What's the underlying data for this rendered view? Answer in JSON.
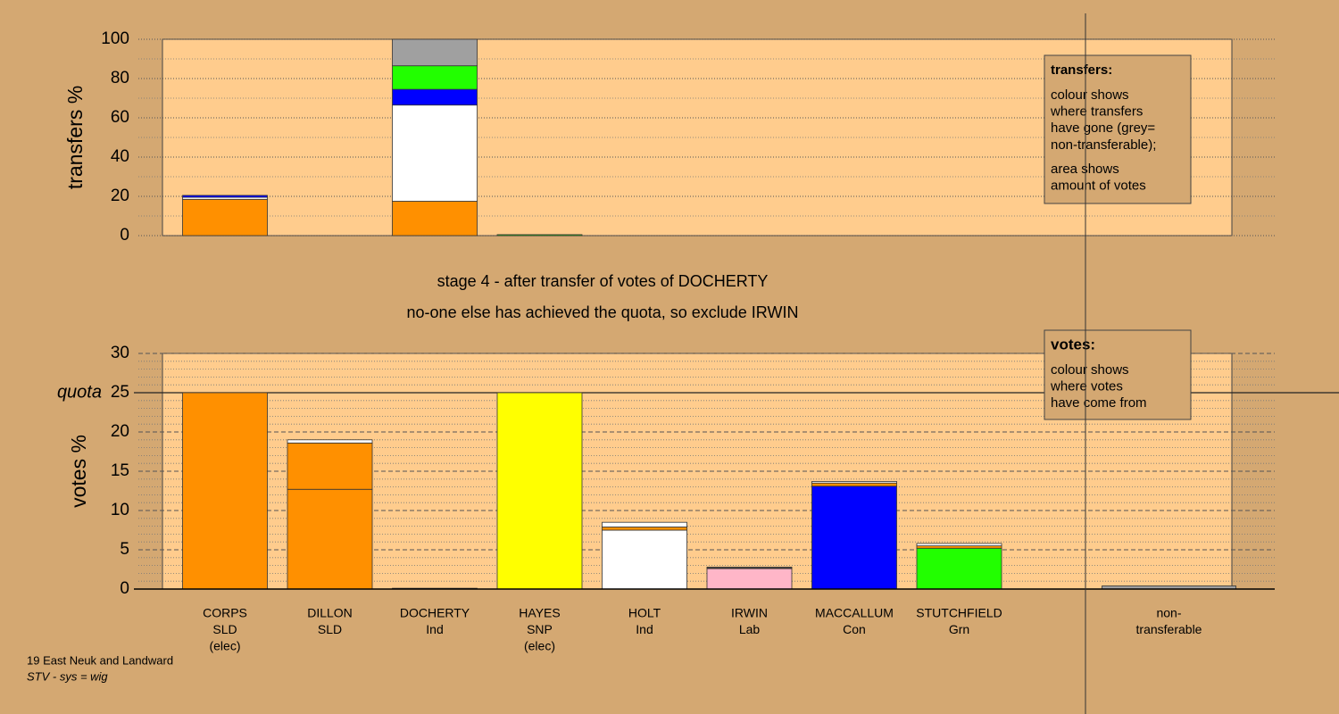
{
  "chart_data": [
    {
      "type": "bar",
      "stacked": true,
      "ylabel": "transfers %",
      "ylim": [
        0,
        100
      ],
      "yticks": [
        0,
        20,
        40,
        60,
        80,
        100
      ],
      "series": [
        {
          "color": "#ff9000",
          "values": [
            18.5,
            0,
            17.5,
            0,
            0,
            0,
            0,
            0,
            0,
            0
          ]
        },
        {
          "color": "#ffffff",
          "values": [
            1,
            0,
            49,
            0,
            0,
            0,
            0,
            0,
            0,
            0
          ]
        },
        {
          "color": "#0000ff",
          "values": [
            1,
            0,
            8,
            0,
            0,
            0,
            0,
            0,
            0,
            0
          ]
        },
        {
          "color": "#22ff00",
          "values": [
            0,
            0,
            12,
            0.5,
            0,
            0,
            0,
            0,
            0,
            0
          ]
        },
        {
          "color": "#a0a0a0",
          "values": [
            0,
            0,
            13.5,
            0,
            0,
            0,
            0,
            0,
            0,
            0
          ]
        }
      ],
      "note": {
        "title": "transfers:",
        "paragraphs": [
          [
            "colour shows",
            "where transfers",
            "have gone (grey=",
            "non-transferable);"
          ],
          [
            "area shows",
            "amount of votes"
          ]
        ]
      }
    },
    {
      "type": "bar",
      "stacked": true,
      "ylabel": "votes %",
      "ylim": [
        0,
        30
      ],
      "yticks": [
        0,
        5,
        10,
        15,
        20,
        25,
        30
      ],
      "quota": {
        "label": "quota",
        "value": 25
      },
      "categories": [
        [
          "CORPS",
          "SLD",
          "(elec)"
        ],
        [
          "DILLON",
          "SLD"
        ],
        [
          "DOCHERTY",
          "Ind"
        ],
        [
          "HAYES",
          "SNP",
          "(elec)"
        ],
        [
          "HOLT",
          "Ind"
        ],
        [
          "IRWIN",
          "Lab"
        ],
        [
          "MACCALLUM",
          "Con"
        ],
        [
          "STUTCHFIELD",
          "Grn"
        ],
        null,
        [
          "non-",
          "transferable"
        ]
      ],
      "series": [
        {
          "colors": [
            "#ff9000",
            "#ff9000",
            "#ffffff",
            "#ffff00",
            "#ffffff",
            "#ffb6c8",
            "#0000ff",
            "#22ff00",
            null,
            "#a0a0a0"
          ],
          "values": [
            25,
            12.7,
            0,
            25,
            7.5,
            2.6,
            13.1,
            5.2,
            0,
            0
          ]
        },
        {
          "color": "#ff9000",
          "values": [
            0,
            5.9,
            0,
            0,
            0.4,
            0.1,
            0.4,
            0.3,
            0,
            0
          ]
        },
        {
          "color": "#ffffff",
          "values": [
            0,
            0.4,
            0.1,
            0,
            0.6,
            0.1,
            0.2,
            0.3,
            0,
            0
          ]
        },
        {
          "color": "#a0a0a0",
          "values": [
            0,
            0,
            0,
            0,
            0,
            0,
            0,
            0,
            0,
            0.4
          ]
        }
      ],
      "note": {
        "title": "votes:",
        "paragraphs": [
          [
            "colour shows",
            "where votes",
            "have come from"
          ]
        ]
      }
    }
  ],
  "stage_title": "stage 4 - after transfer of votes of DOCHERTY",
  "stage_note": "no-one else has achieved the quota, so exclude IRWIN",
  "footer": {
    "area": "19 East Neuk and Landward",
    "system": "STV - sys = wig"
  }
}
